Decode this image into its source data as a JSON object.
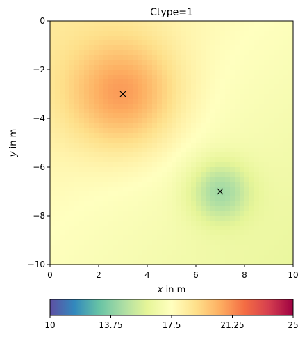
{
  "chart_data": {
    "type": "heatmap",
    "title": "Ctype=1",
    "xlabel_var": "x",
    "xlabel_unit": " in m",
    "ylabel_var": "y",
    "ylabel_unit": " in m",
    "xlim": [
      0,
      10
    ],
    "ylim": [
      -10,
      0
    ],
    "xticks": [
      0,
      2,
      4,
      6,
      8,
      10
    ],
    "xtick_labels": [
      "0",
      "2",
      "4",
      "6",
      "8",
      "10"
    ],
    "yticks": [
      0,
      -2,
      -4,
      -6,
      -8,
      -10
    ],
    "ytick_labels": [
      "0",
      "−2",
      "−4",
      "−6",
      "−8",
      "−10"
    ],
    "grid": false,
    "colormap": "Spectral_r",
    "colorbar": {
      "orientation": "horizontal",
      "placement": "bottom",
      "vmin": 10,
      "vmax": 25,
      "ticks": [
        10,
        13.75,
        17.5,
        21.25,
        25
      ],
      "tick_labels": [
        "10",
        "13.75",
        "17.5",
        "21.25",
        "25"
      ],
      "colors": [
        "#5e4fa2",
        "#3288bd",
        "#66c2a5",
        "#abdda4",
        "#e6f598",
        "#ffffbf",
        "#fee08b",
        "#fdae61",
        "#f46d43",
        "#d53e4f",
        "#9e0142"
      ]
    },
    "field": {
      "background_value": 17.4,
      "gradient_value_top_left": 18.5,
      "gradient_value_bottom_right": 16.2,
      "sources": [
        {
          "x": 3,
          "y": -3,
          "peak_value": 20.5,
          "spread": 1.6
        },
        {
          "x": 7,
          "y": -7,
          "peak_value": 14.8,
          "spread": 0.9
        }
      ]
    },
    "markers": [
      {
        "x": 3,
        "y": -3,
        "symbol": "x"
      },
      {
        "x": 7,
        "y": -7,
        "symbol": "x"
      }
    ]
  }
}
